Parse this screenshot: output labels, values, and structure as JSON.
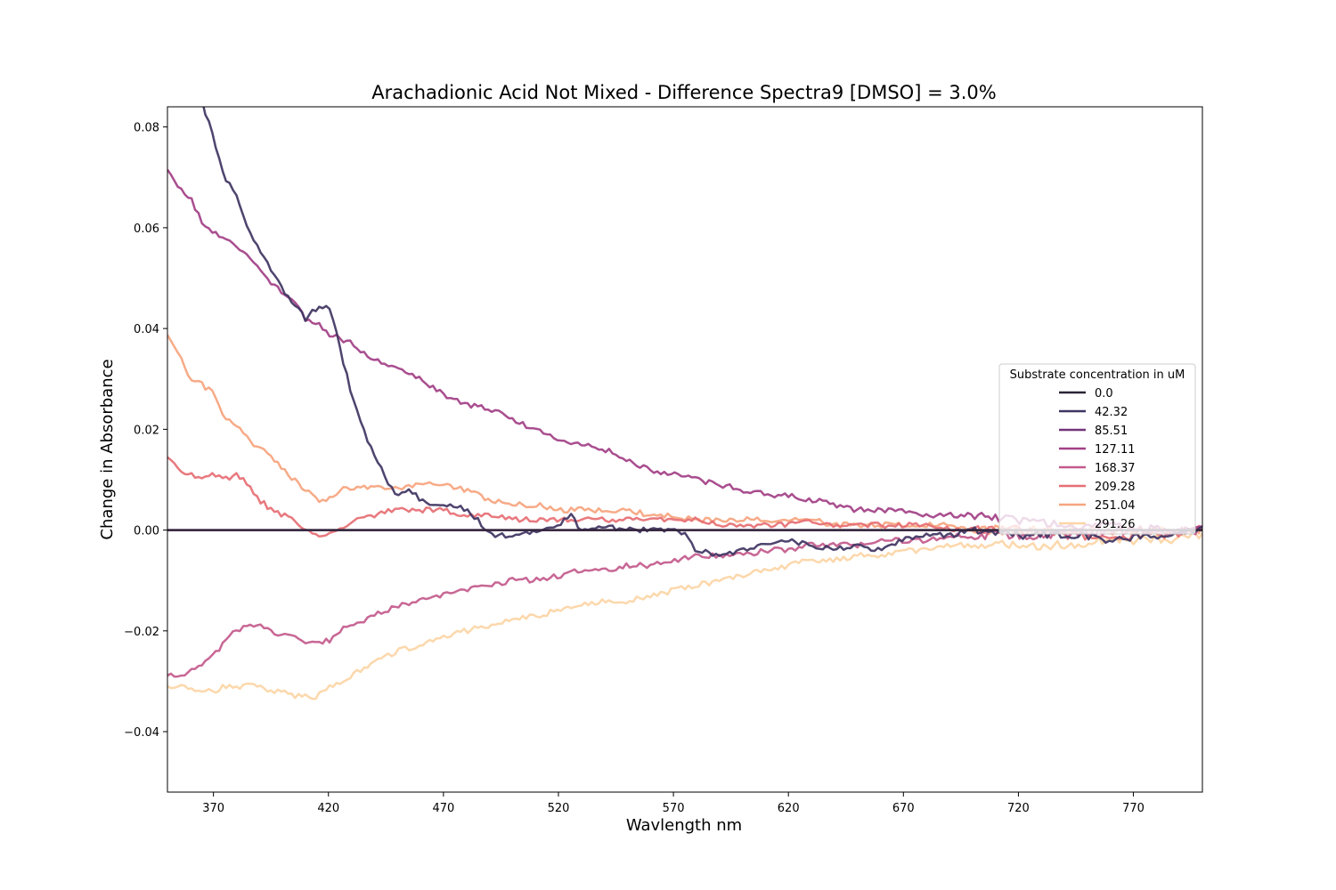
{
  "chart_data": {
    "type": "line",
    "title": "Arachadionic Acid Not Mixed - Difference Spectra9 [DMSO] = 3.0%",
    "xlabel": "Wavlength nm",
    "ylabel": "Change in Absorbance",
    "xlim": [
      350,
      800
    ],
    "ylim": [
      -0.052,
      0.084
    ],
    "xticks": [
      370,
      420,
      470,
      520,
      570,
      620,
      670,
      720,
      770
    ],
    "yticks": [
      -0.04,
      -0.02,
      0.0,
      0.02,
      0.04,
      0.06,
      0.08
    ],
    "ytick_labels": [
      "−0.04",
      "−0.02",
      "0.00",
      "0.02",
      "0.04",
      "0.06",
      "0.08"
    ],
    "grid": false,
    "legend": {
      "title": "Substrate concentration in uM",
      "placement": "center-right"
    },
    "series": [
      {
        "name": "0.0",
        "color": "#2b2436",
        "x": [
          350,
          800
        ],
        "y": [
          0.0,
          0.0
        ]
      },
      {
        "name": "42.32",
        "color": "#3f3462",
        "x": [
          350,
          360,
          365,
          370,
          375,
          380,
          385,
          390,
          395,
          400,
          405,
          410,
          415,
          420,
          422,
          425,
          430,
          435,
          440,
          445,
          450,
          455,
          460,
          465,
          470,
          475,
          480,
          485,
          490,
          495,
          500,
          510,
          520,
          525,
          530,
          540,
          550,
          560,
          570,
          575,
          580,
          590,
          600,
          610,
          620,
          630,
          640,
          650,
          660,
          670,
          680,
          690,
          700,
          720,
          740,
          760,
          780,
          800
        ],
        "y": [
          0.12,
          0.09,
          0.085,
          0.078,
          0.07,
          0.066,
          0.06,
          0.056,
          0.052,
          0.048,
          0.045,
          0.042,
          0.044,
          0.044,
          0.042,
          0.036,
          0.027,
          0.02,
          0.015,
          0.01,
          0.007,
          0.008,
          0.006,
          0.005,
          0.005,
          0.005,
          0.004,
          0.002,
          -0.001,
          -0.001,
          -0.001,
          0.0,
          0.001,
          0.003,
          0.0,
          0.001,
          0.0,
          0.0,
          0.0,
          -0.001,
          -0.004,
          -0.005,
          -0.004,
          -0.003,
          -0.002,
          -0.003,
          -0.004,
          -0.003,
          -0.004,
          -0.002,
          -0.001,
          -0.001,
          0.0,
          -0.001,
          -0.001,
          -0.002,
          -0.001,
          0.0
        ]
      },
      {
        "name": "85.51",
        "color": "#72347a",
        "x": [
          350,
          800
        ],
        "y": [
          0.0,
          0.0
        ]
      },
      {
        "name": "127.11",
        "color": "#a23f86",
        "x": [
          350,
          355,
          360,
          365,
          370,
          375,
          380,
          385,
          390,
          395,
          400,
          405,
          410,
          415,
          420,
          430,
          440,
          450,
          460,
          470,
          480,
          490,
          500,
          510,
          520,
          530,
          540,
          550,
          560,
          570,
          580,
          590,
          600,
          610,
          620,
          630,
          640,
          650,
          660,
          670,
          680,
          690,
          700,
          720,
          740,
          760,
          780,
          800
        ],
        "y": [
          0.072,
          0.068,
          0.066,
          0.061,
          0.059,
          0.058,
          0.056,
          0.054,
          0.052,
          0.049,
          0.047,
          0.045,
          0.042,
          0.041,
          0.039,
          0.037,
          0.034,
          0.032,
          0.03,
          0.027,
          0.025,
          0.024,
          0.022,
          0.02,
          0.018,
          0.017,
          0.016,
          0.014,
          0.012,
          0.011,
          0.01,
          0.009,
          0.008,
          0.007,
          0.007,
          0.006,
          0.005,
          0.004,
          0.004,
          0.004,
          0.003,
          0.003,
          0.003,
          0.002,
          0.001,
          0.001,
          0.0,
          0.0
        ]
      },
      {
        "name": "168.37",
        "color": "#c35a8c",
        "x": [
          350,
          355,
          360,
          365,
          370,
          375,
          380,
          385,
          390,
          395,
          400,
          410,
          420,
          425,
          430,
          440,
          450,
          460,
          470,
          480,
          490,
          500,
          510,
          520,
          530,
          540,
          550,
          560,
          570,
          580,
          590,
          600,
          610,
          620,
          630,
          640,
          650,
          660,
          670,
          680,
          690,
          700,
          720,
          740,
          760,
          780,
          800
        ],
        "y": [
          -0.029,
          -0.029,
          -0.028,
          -0.027,
          -0.025,
          -0.022,
          -0.02,
          -0.019,
          -0.019,
          -0.02,
          -0.021,
          -0.022,
          -0.022,
          -0.02,
          -0.019,
          -0.017,
          -0.015,
          -0.014,
          -0.013,
          -0.012,
          -0.011,
          -0.01,
          -0.01,
          -0.009,
          -0.008,
          -0.008,
          -0.007,
          -0.007,
          -0.006,
          -0.005,
          -0.005,
          -0.005,
          -0.004,
          -0.004,
          -0.003,
          -0.003,
          -0.003,
          -0.002,
          -0.002,
          -0.002,
          -0.001,
          -0.001,
          -0.001,
          -0.001,
          0.0,
          0.0,
          0.0
        ]
      },
      {
        "name": "209.28",
        "color": "#e66e73",
        "x": [
          350,
          355,
          360,
          365,
          370,
          375,
          380,
          385,
          390,
          395,
          400,
          405,
          410,
          415,
          420,
          425,
          430,
          440,
          450,
          460,
          470,
          480,
          490,
          500,
          510,
          520,
          530,
          540,
          550,
          560,
          570,
          580,
          590,
          600,
          610,
          620,
          630,
          640,
          650,
          660,
          670,
          680,
          690,
          700,
          720,
          740,
          760,
          780,
          800
        ],
        "y": [
          0.014,
          0.012,
          0.011,
          0.01,
          0.011,
          0.01,
          0.011,
          0.009,
          0.006,
          0.004,
          0.003,
          0.002,
          0.0,
          -0.001,
          -0.001,
          0.0,
          0.002,
          0.003,
          0.004,
          0.004,
          0.004,
          0.003,
          0.003,
          0.002,
          0.002,
          0.002,
          0.002,
          0.002,
          0.002,
          0.002,
          0.002,
          0.002,
          0.001,
          0.001,
          0.001,
          0.001,
          0.002,
          0.001,
          0.001,
          0.001,
          0.001,
          0.001,
          0.0,
          0.0,
          0.0,
          -0.001,
          -0.001,
          -0.001,
          0.0
        ]
      },
      {
        "name": "251.04",
        "color": "#f6a47e",
        "x": [
          350,
          355,
          360,
          365,
          370,
          375,
          380,
          385,
          390,
          395,
          400,
          405,
          410,
          415,
          420,
          425,
          430,
          440,
          450,
          460,
          470,
          480,
          490,
          500,
          510,
          520,
          530,
          540,
          550,
          560,
          570,
          580,
          590,
          600,
          610,
          620,
          630,
          640,
          650,
          660,
          670,
          680,
          690,
          700,
          720,
          740,
          760,
          780,
          800
        ],
        "y": [
          0.039,
          0.035,
          0.03,
          0.029,
          0.027,
          0.022,
          0.021,
          0.018,
          0.016,
          0.015,
          0.012,
          0.01,
          0.008,
          0.006,
          0.006,
          0.008,
          0.008,
          0.009,
          0.008,
          0.009,
          0.009,
          0.008,
          0.006,
          0.005,
          0.005,
          0.004,
          0.004,
          0.004,
          0.004,
          0.003,
          0.003,
          0.002,
          0.002,
          0.002,
          0.002,
          0.002,
          0.002,
          0.001,
          0.001,
          0.001,
          0.001,
          0.001,
          0.001,
          0.0,
          0.0,
          0.0,
          0.0,
          0.0,
          0.0
        ]
      },
      {
        "name": "291.26",
        "color": "#fcd5a5",
        "x": [
          350,
          355,
          360,
          365,
          370,
          375,
          380,
          385,
          390,
          395,
          400,
          405,
          410,
          415,
          420,
          425,
          430,
          440,
          450,
          460,
          470,
          480,
          490,
          500,
          510,
          520,
          530,
          540,
          550,
          560,
          570,
          580,
          590,
          600,
          610,
          620,
          630,
          640,
          650,
          660,
          670,
          680,
          690,
          700,
          720,
          740,
          760,
          780,
          800
        ],
        "y": [
          -0.031,
          -0.031,
          -0.031,
          -0.032,
          -0.032,
          -0.031,
          -0.031,
          -0.031,
          -0.031,
          -0.032,
          -0.032,
          -0.033,
          -0.033,
          -0.033,
          -0.031,
          -0.03,
          -0.029,
          -0.026,
          -0.024,
          -0.023,
          -0.021,
          -0.02,
          -0.019,
          -0.018,
          -0.017,
          -0.016,
          -0.015,
          -0.014,
          -0.014,
          -0.013,
          -0.012,
          -0.011,
          -0.01,
          -0.009,
          -0.008,
          -0.007,
          -0.006,
          -0.006,
          -0.005,
          -0.005,
          -0.004,
          -0.004,
          -0.003,
          -0.003,
          -0.003,
          -0.003,
          -0.002,
          -0.002,
          -0.001
        ]
      }
    ]
  }
}
